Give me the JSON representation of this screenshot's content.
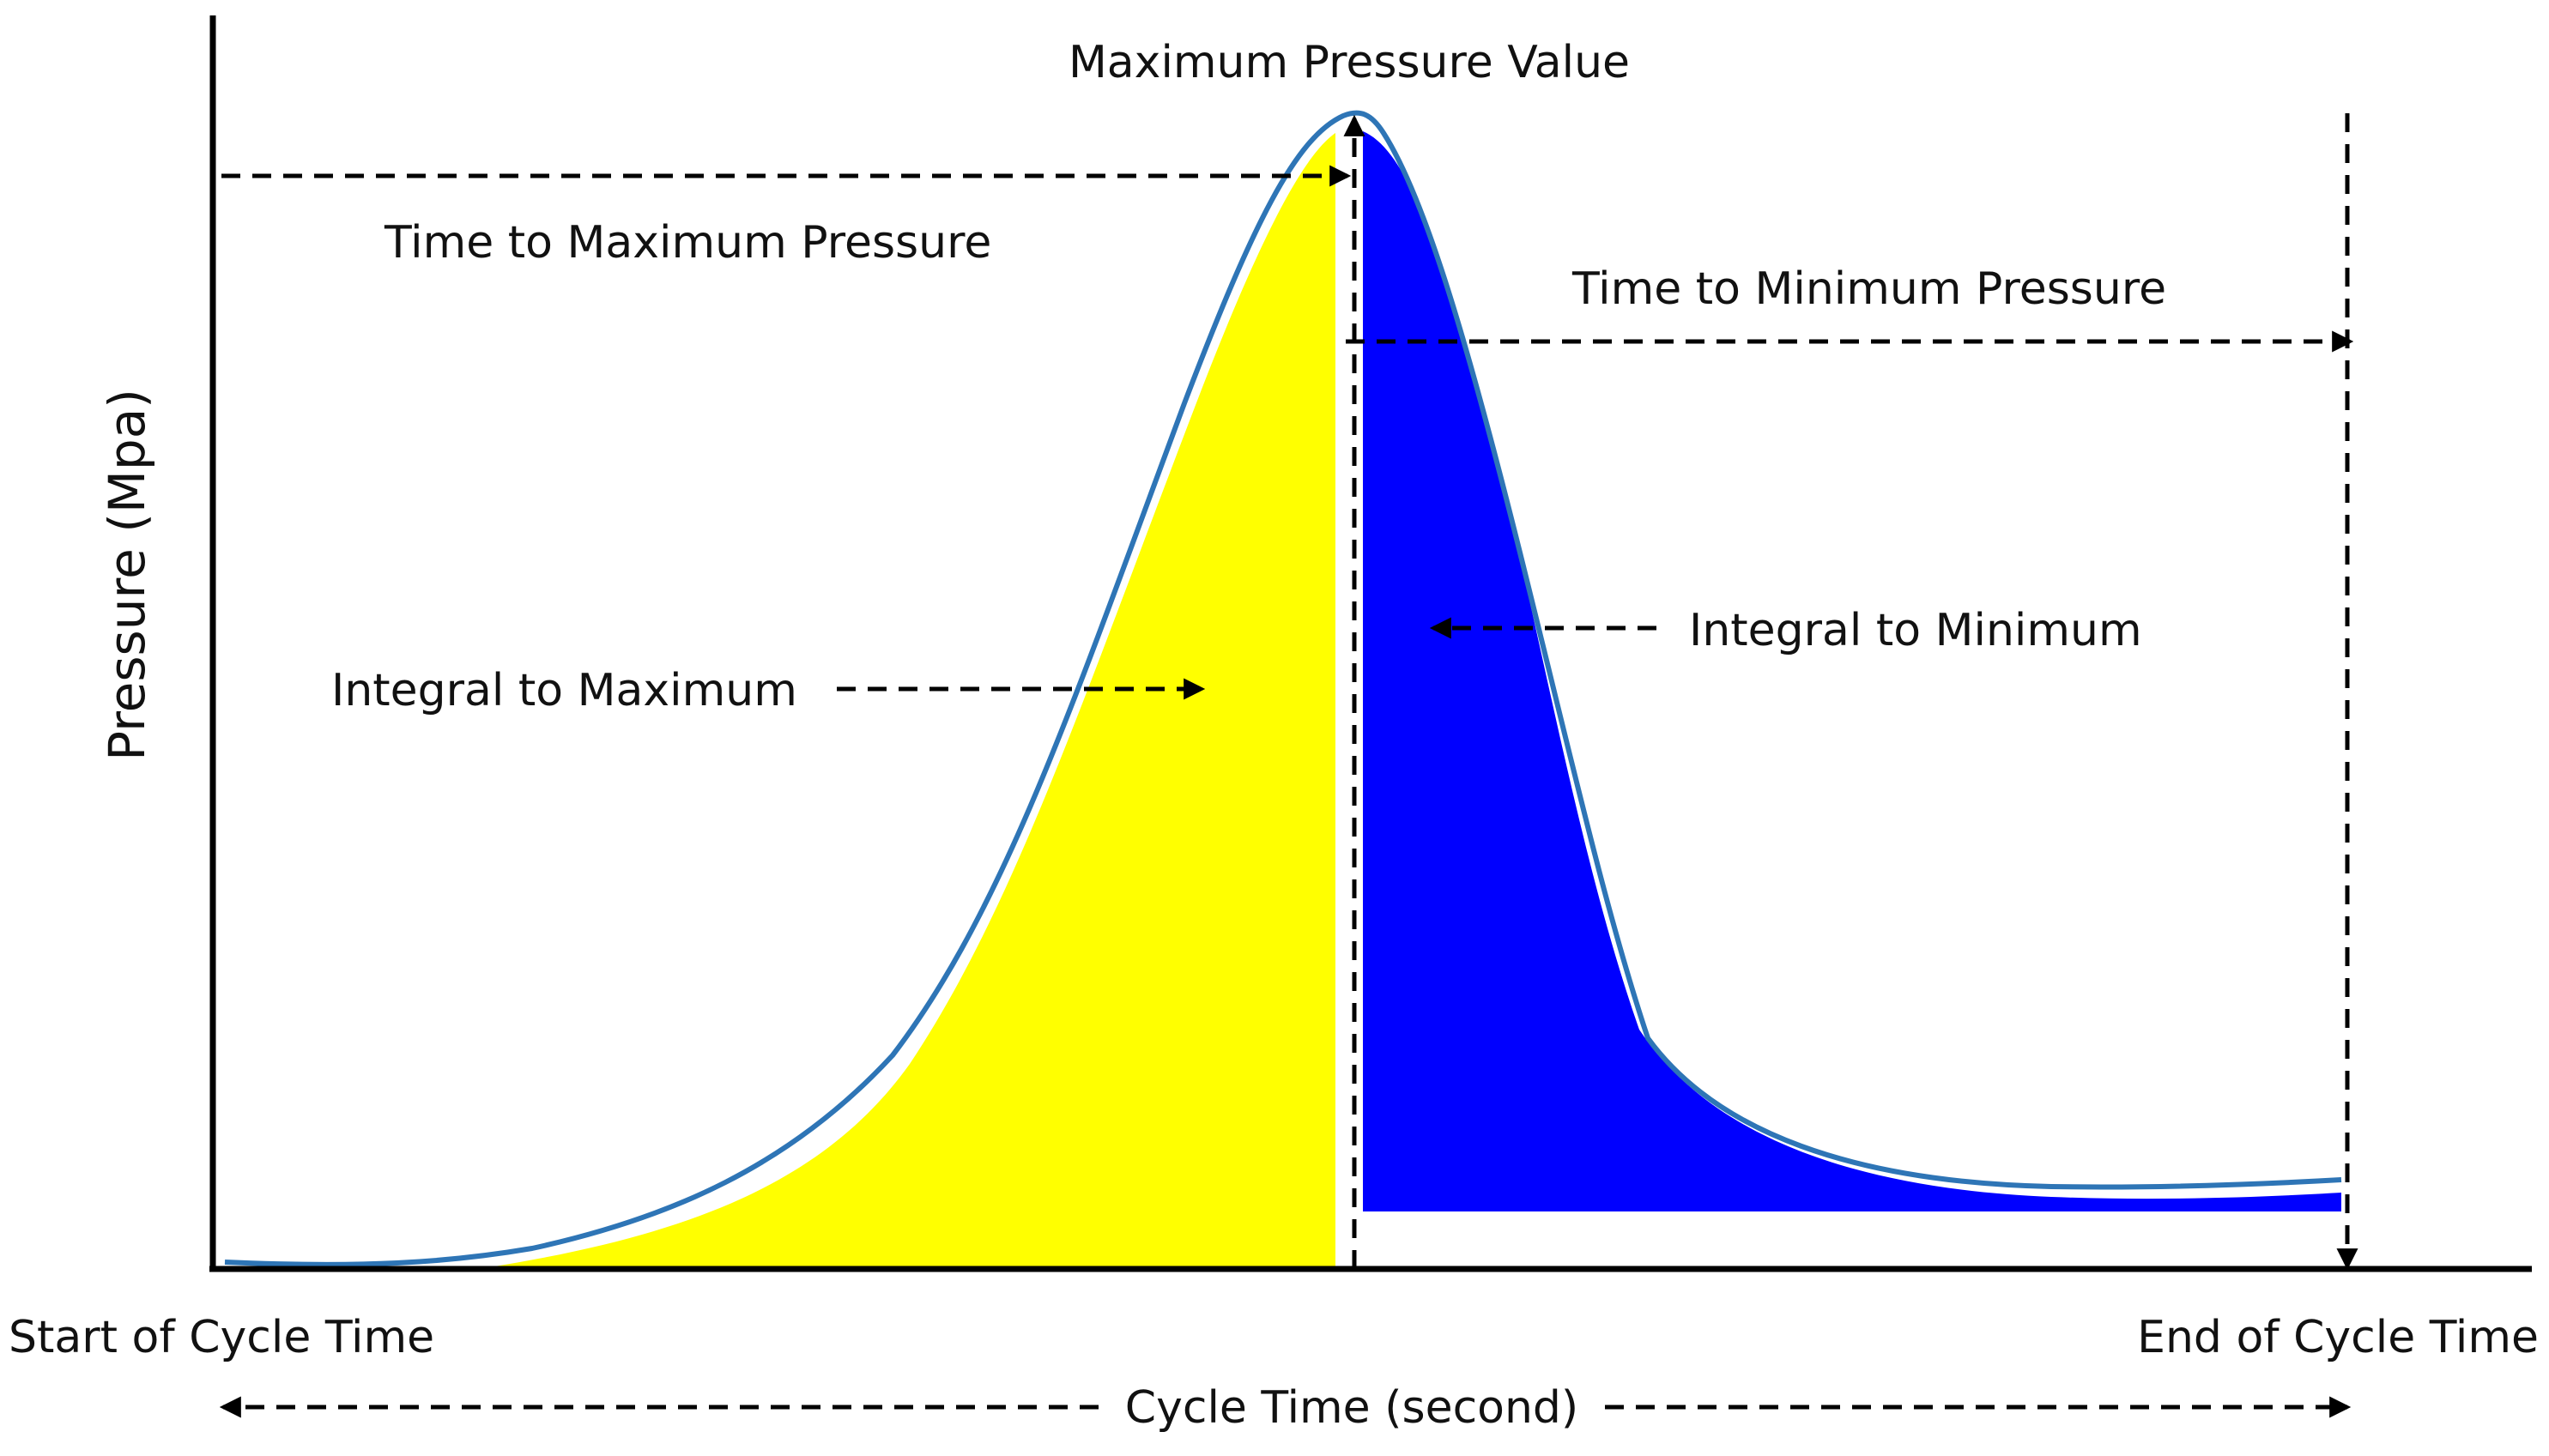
{
  "diagram": {
    "y_axis_label": "Pressure (Mpa)",
    "x_axis_label": "Cycle Time (second)",
    "start_label": "Start of Cycle Time",
    "end_label": "End of Cycle Time",
    "peak_label": "Maximum Pressure Value",
    "time_to_max_label": "Time to Maximum Pressure",
    "time_to_min_label": "Time to Minimum Pressure",
    "integral_max_label": "Integral to Maximum",
    "integral_min_label": "Integral to Minimum"
  },
  "colors": {
    "curve": "#2E75B6",
    "integral_to_max_fill": "#FFFF00",
    "integral_to_min_fill": "#0000FF",
    "axes": "#000000",
    "background": "#FFFFFF"
  }
}
